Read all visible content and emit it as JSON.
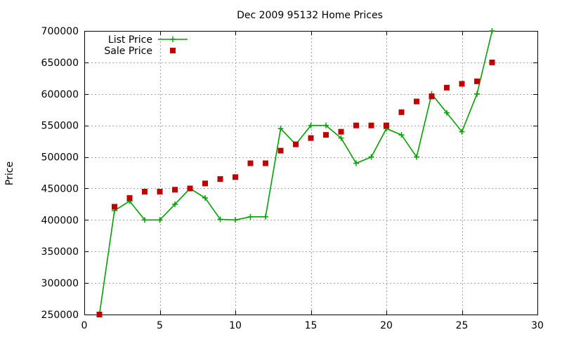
{
  "chart_data": {
    "type": "line",
    "title": "Dec 2009 95132 Home Prices",
    "xlabel": "",
    "ylabel": "Price",
    "xlim": [
      0,
      30
    ],
    "ylim": [
      250000,
      700000
    ],
    "xticks": [
      0,
      5,
      10,
      15,
      20,
      25,
      30
    ],
    "yticks": [
      250000,
      300000,
      350000,
      400000,
      450000,
      500000,
      550000,
      600000,
      650000,
      700000
    ],
    "grid": true,
    "legend_position": "top-left",
    "series": [
      {
        "name": "List Price",
        "style": "line+plus",
        "color": "#00a000",
        "x": [
          1,
          2,
          3,
          4,
          5,
          6,
          7,
          8,
          9,
          10,
          11,
          12,
          13,
          14,
          15,
          16,
          17,
          18,
          19,
          20,
          21,
          22,
          23,
          24,
          25,
          26,
          27
        ],
        "values": [
          250000,
          415000,
          430000,
          400000,
          400000,
          425000,
          450000,
          435000,
          401000,
          400000,
          405000,
          405000,
          545000,
          520000,
          550000,
          550000,
          530000,
          490000,
          500000,
          545000,
          535000,
          500000,
          600000,
          570000,
          540000,
          600000,
          700000
        ]
      },
      {
        "name": "Sale Price",
        "style": "square",
        "color": "#c00000",
        "x": [
          1,
          2,
          3,
          4,
          5,
          6,
          7,
          8,
          9,
          10,
          11,
          12,
          13,
          14,
          15,
          16,
          17,
          18,
          19,
          20,
          21,
          22,
          23,
          24,
          25,
          26,
          27
        ],
        "values": [
          250000,
          421000,
          435000,
          445000,
          445000,
          448000,
          450000,
          458000,
          465000,
          468000,
          490000,
          490000,
          510000,
          520000,
          530000,
          535000,
          540000,
          550000,
          550000,
          550000,
          571000,
          588000,
          596000,
          610000,
          616000,
          620000,
          650000
        ]
      }
    ]
  }
}
